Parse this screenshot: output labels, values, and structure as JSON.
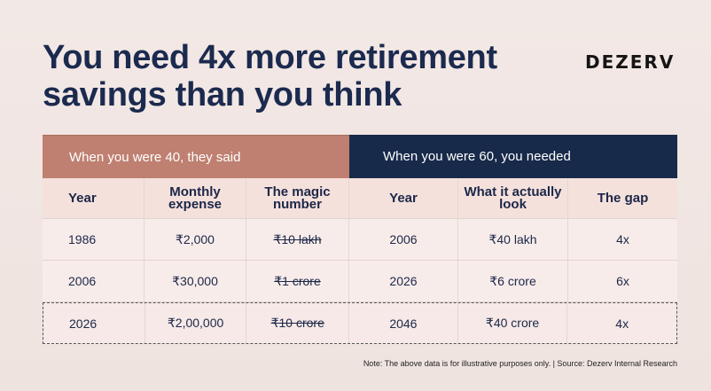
{
  "title": {
    "line1": "You need 4x more retirement",
    "line2": "savings than you think"
  },
  "brand": "DEZERV",
  "table": {
    "group_left": "When you were 40, they said",
    "group_right": "When you were 60, you needed",
    "headers": [
      "Year",
      "Monthly expense",
      "The magic number",
      "Year",
      "What it actually look",
      "The gap"
    ],
    "rows": [
      [
        "1986",
        "₹2,000",
        "₹10 lakh",
        "2006",
        "₹40 lakh",
        "4x"
      ],
      [
        "2006",
        "₹30,000",
        "₹1 crore",
        "2026",
        "₹6 crore",
        "6x"
      ],
      [
        "2026",
        "₹2,00,000",
        "₹10 crore",
        "2046",
        "₹40 crore",
        "4x"
      ]
    ]
  },
  "colors": {
    "left_header": "#bf8071",
    "right_header": "#182a4a",
    "title": "#1b2a4e"
  },
  "note": "Note: The above data is for illustrative purposes only. | Source: Dezerv Internal Research"
}
